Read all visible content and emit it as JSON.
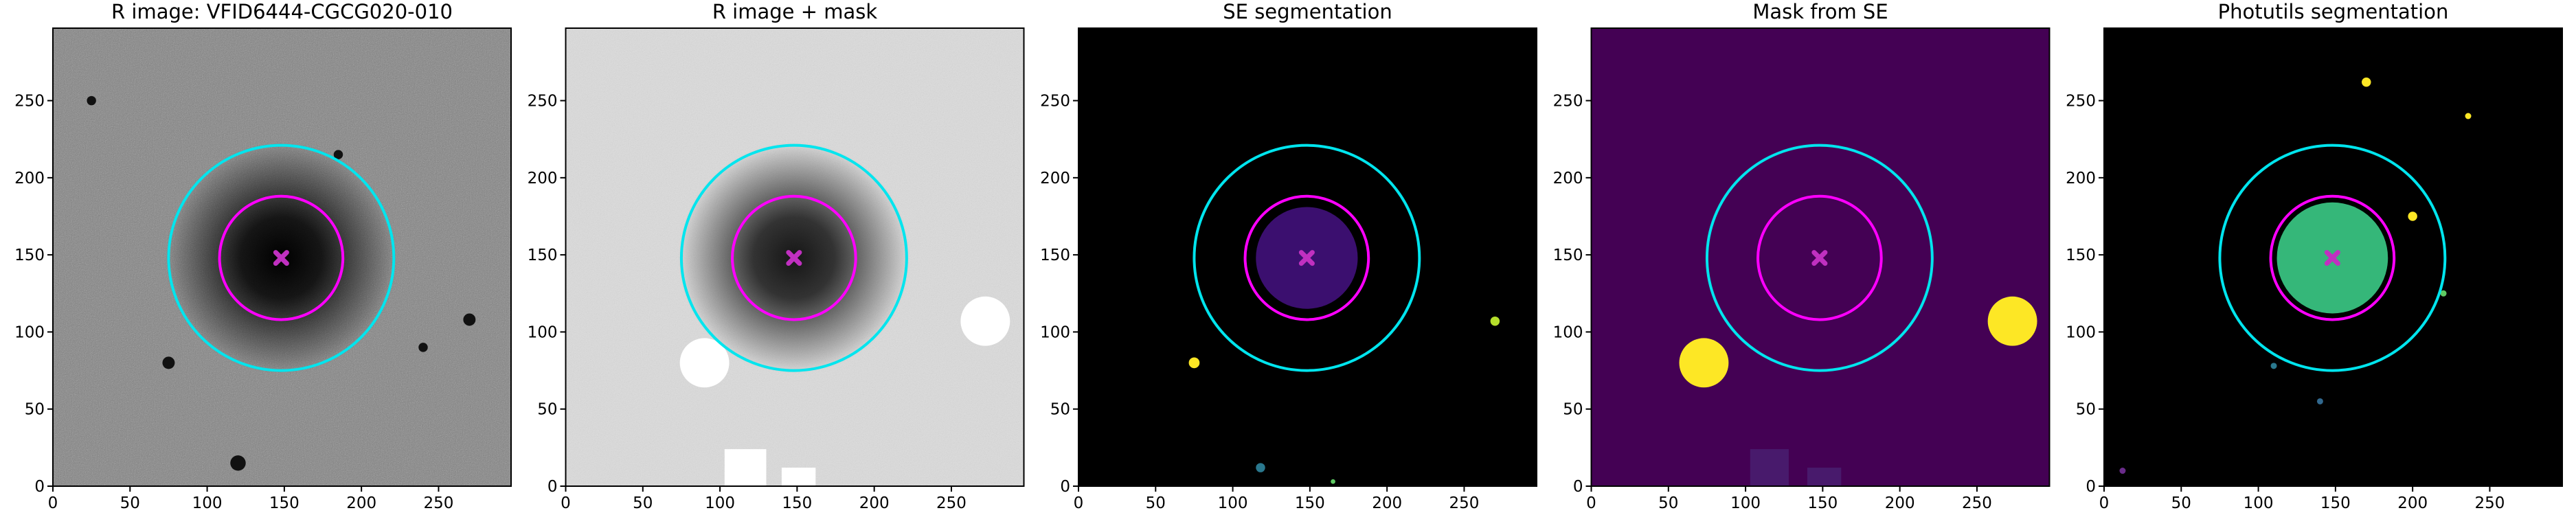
{
  "chart_data": [
    {
      "type": "image",
      "title": "R image: VFID6444-CGCG020-010",
      "background": "#808080",
      "xlim": [
        0,
        297
      ],
      "ylim": [
        0,
        297
      ],
      "xticks": [
        0,
        50,
        100,
        150,
        200,
        250
      ],
      "yticks": [
        0,
        50,
        100,
        150,
        200,
        250
      ],
      "circles": [
        {
          "x": 148,
          "y": 148,
          "r": 73,
          "color": "#00e5ee"
        },
        {
          "x": 148,
          "y": 148,
          "r": 40,
          "color": "#ff00ff"
        }
      ],
      "marker": {
        "x": 148,
        "y": 148,
        "color": "#c030c0"
      }
    },
    {
      "type": "image",
      "title": "R image + mask",
      "background": "#dcdcdc",
      "xlim": [
        0,
        297
      ],
      "ylim": [
        0,
        297
      ],
      "xticks": [
        0,
        50,
        100,
        150,
        200,
        250
      ],
      "yticks": [
        0,
        50,
        100,
        150,
        200,
        250
      ],
      "circles": [
        {
          "x": 148,
          "y": 148,
          "r": 73,
          "color": "#00e5ee"
        },
        {
          "x": 148,
          "y": 148,
          "r": 40,
          "color": "#ff00ff"
        }
      ],
      "marker": {
        "x": 148,
        "y": 148,
        "color": "#c030c0"
      }
    },
    {
      "type": "image",
      "title": "SE segmentation",
      "background": "#000000",
      "xlim": [
        0,
        297
      ],
      "ylim": [
        0,
        297
      ],
      "xticks": [
        0,
        50,
        100,
        150,
        200,
        250
      ],
      "yticks": [
        0,
        50,
        100,
        150,
        200,
        250
      ],
      "circles": [
        {
          "x": 148,
          "y": 148,
          "r": 73,
          "color": "#00e5ee"
        },
        {
          "x": 148,
          "y": 148,
          "r": 40,
          "color": "#ff00ff"
        }
      ],
      "marker": {
        "x": 148,
        "y": 148,
        "color": "#c030c0"
      }
    },
    {
      "type": "image",
      "title": "Mask from SE",
      "background": "#440154",
      "xlim": [
        0,
        297
      ],
      "ylim": [
        0,
        297
      ],
      "xticks": [
        0,
        50,
        100,
        150,
        200,
        250
      ],
      "yticks": [
        0,
        50,
        100,
        150,
        200,
        250
      ],
      "circles": [
        {
          "x": 148,
          "y": 148,
          "r": 73,
          "color": "#00e5ee"
        },
        {
          "x": 148,
          "y": 148,
          "r": 40,
          "color": "#ff00ff"
        }
      ],
      "marker": {
        "x": 148,
        "y": 148,
        "color": "#c030c0"
      }
    },
    {
      "type": "image",
      "title": "Photutils segmentation",
      "background": "#000000",
      "xlim": [
        0,
        297
      ],
      "ylim": [
        0,
        297
      ],
      "xticks": [
        0,
        50,
        100,
        150,
        200,
        250
      ],
      "yticks": [
        0,
        50,
        100,
        150,
        200,
        250
      ],
      "circles": [
        {
          "x": 148,
          "y": 148,
          "r": 73,
          "color": "#00e5ee"
        },
        {
          "x": 148,
          "y": 148,
          "r": 40,
          "color": "#ff00ff"
        }
      ],
      "marker": {
        "x": 148,
        "y": 148,
        "color": "#c030c0"
      }
    }
  ]
}
